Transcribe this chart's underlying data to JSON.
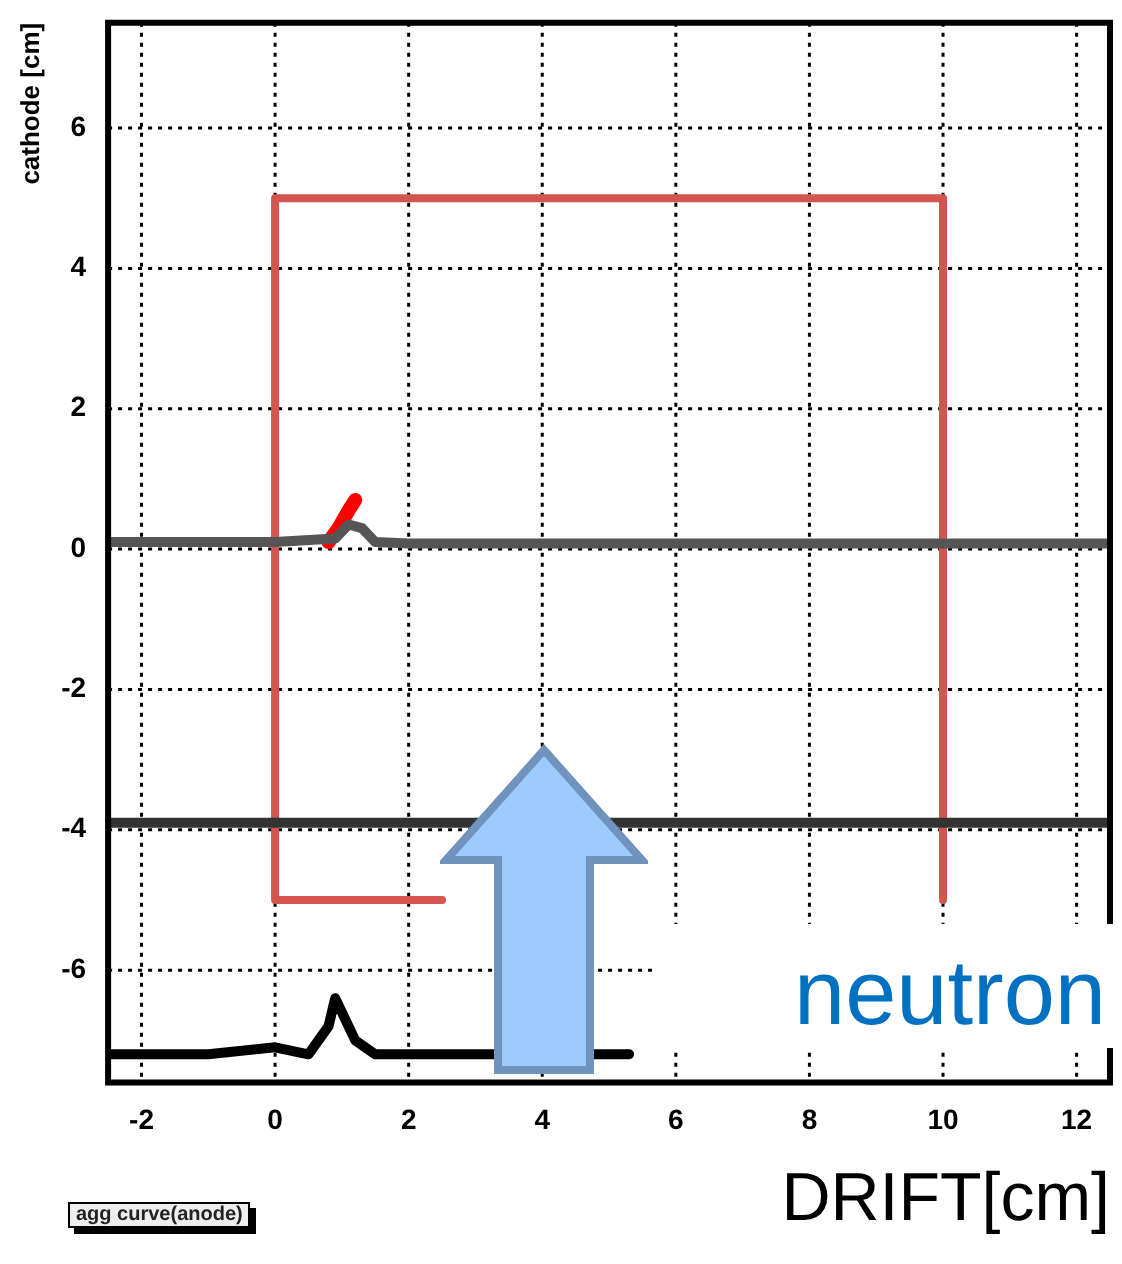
{
  "chart_data": {
    "type": "line",
    "xlabel": "DRIFT[cm]",
    "ylabel": "cathode [cm]",
    "xlim": [
      -2.5,
      12.5
    ],
    "ylim": [
      -7.6,
      7.5
    ],
    "xticks": [
      -2,
      0,
      2,
      4,
      6,
      8,
      10,
      12
    ],
    "yticks": [
      -6,
      -4,
      -2,
      0,
      2,
      4,
      6
    ],
    "grid": true,
    "legend": false,
    "marker": "none",
    "series": [
      {
        "color": "#555555",
        "x": [
          -2.5,
          0,
          0.9,
          1.1,
          1.3,
          1.5,
          2,
          4,
          6,
          8,
          10,
          12.5
        ],
        "values": [
          0.1,
          0.1,
          0.15,
          0.35,
          0.3,
          0.1,
          0.08,
          0.08,
          0.08,
          0.08,
          0.08,
          0.08
        ]
      },
      {
        "color": "#ff0000",
        "x": [
          0.8,
          0.95,
          1.1,
          1.2
        ],
        "values": [
          0.1,
          0.3,
          0.55,
          0.7
        ]
      },
      {
        "color": "#333333",
        "x": [
          -2.5,
          0,
          2,
          2.5,
          5.5,
          6,
          8,
          10,
          12.5
        ],
        "values": [
          -3.9,
          -3.9,
          -3.9,
          -3.9,
          -3.9,
          -3.9,
          -3.9,
          -3.9,
          -3.9
        ]
      },
      {
        "color": "#000000",
        "x": [
          -2.5,
          -1,
          0,
          0.5,
          0.8,
          0.9,
          1.0,
          1.2,
          1.5,
          2,
          2.8,
          5.3
        ],
        "values": [
          -7.2,
          -7.2,
          -7.1,
          -7.2,
          -6.8,
          -6.4,
          -6.6,
          -7.0,
          -7.2,
          -7.2,
          -7.2,
          -7.2
        ]
      },
      {
        "color": "#d45550",
        "x": [
          10,
          10,
          0,
          0,
          2.5
        ],
        "values": [
          -5,
          5,
          5,
          -5,
          -5
        ]
      }
    ],
    "annotations": [
      "neutron",
      "agg curve(anode)"
    ]
  }
}
